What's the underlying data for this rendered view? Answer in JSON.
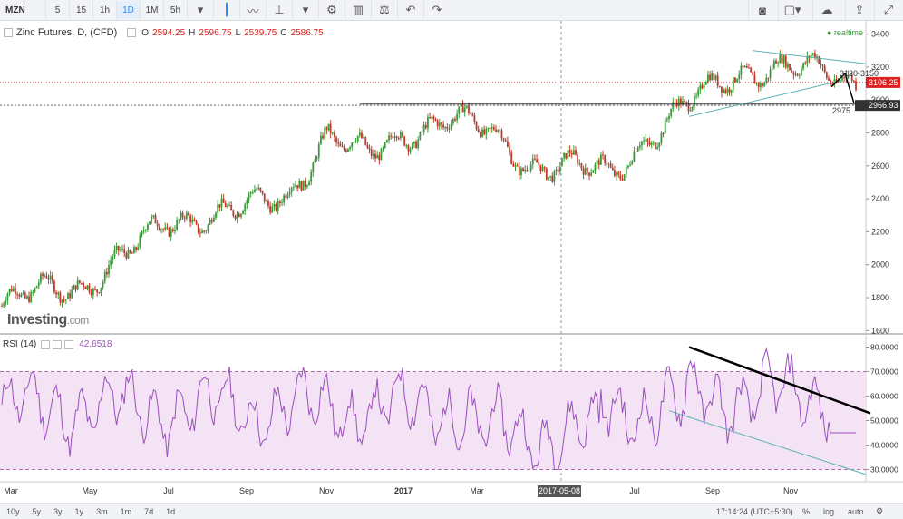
{
  "toolbar": {
    "symbol": "MZN",
    "intervals": [
      "5",
      "15",
      "1h",
      "1D",
      "1M",
      "5h"
    ],
    "active_interval": "1D"
  },
  "legend": {
    "title": "Zinc Futures, D, (CFD)",
    "open_label": "O",
    "open": "2594.25",
    "high_label": "H",
    "high": "2596.75",
    "low_label": "L",
    "low": "2539.75",
    "close_label": "C",
    "close": "2586.75"
  },
  "realtime_label": "realtime",
  "watermark": {
    "brand": "Investing",
    "suffix": ".com"
  },
  "rsi_legend": {
    "label": "RSI (14)",
    "value": "42.6518"
  },
  "bottom": {
    "ranges": [
      "10y",
      "5y",
      "3y",
      "1y",
      "3m",
      "1m",
      "7d",
      "1d"
    ],
    "time": "17:14:24 (UTC+5:30)",
    "percent": "%",
    "log": "log",
    "auto": "auto"
  },
  "colors": {
    "up": "#3a9a3a",
    "down": "#c0392b",
    "rsi": "#9b4fbf",
    "rsi_band": "#f3e3f4",
    "price_line": "#e02020"
  },
  "chart_data": {
    "type": "candlestick",
    "price_axis": {
      "ticks": [
        1600,
        1800,
        2000,
        2200,
        2400,
        2600,
        2800,
        3000,
        3200,
        3400
      ],
      "range": [
        1580,
        3480
      ]
    },
    "time_axis": {
      "labels": [
        "Mar",
        "May",
        "Jul",
        "Sep",
        "Nov",
        "2017",
        "Mar",
        "2017-05-08",
        "Jul",
        "Sep",
        "Nov"
      ]
    },
    "price_path": [
      {
        "month": "Mar 2016",
        "close": 1750
      },
      {
        "month": "Apr 2016",
        "close": 1850
      },
      {
        "month": "May 2016",
        "close": 1870
      },
      {
        "month": "Jun 2016",
        "close": 2050
      },
      {
        "month": "Jul 2016",
        "close": 2250
      },
      {
        "month": "Aug 2016",
        "close": 2300
      },
      {
        "month": "Sep 2016",
        "close": 2350
      },
      {
        "month": "Oct 2016",
        "close": 2400
      },
      {
        "month": "Nov 2016",
        "close": 2800
      },
      {
        "month": "Dec 2016",
        "close": 2650
      },
      {
        "month": "Jan 2017",
        "close": 2800
      },
      {
        "month": "Feb 2017",
        "close": 2900
      },
      {
        "month": "Mar 2017",
        "close": 2800
      },
      {
        "month": "Apr 2017",
        "close": 2600
      },
      {
        "month": "May 2017",
        "close": 2600
      },
      {
        "month": "Jun 2017",
        "close": 2550
      },
      {
        "month": "Jul 2017",
        "close": 2800
      },
      {
        "month": "Aug 2017",
        "close": 3000
      },
      {
        "month": "Sep 2017",
        "close": 3150
      },
      {
        "month": "Oct 2017",
        "close": 3200
      },
      {
        "month": "Nov 2017",
        "close": 3180
      },
      {
        "month": "Dec 2017",
        "close": 3106
      }
    ],
    "price_labels": {
      "current": "3106.25",
      "level": "2966.93",
      "target": "3120-3150",
      "support": "2975"
    },
    "rsi": {
      "ticks": [
        "30.0000",
        "40.0000",
        "50.0000",
        "60.0000",
        "70.0000",
        "80.0000"
      ],
      "range": [
        25,
        85
      ],
      "upper_band": 70,
      "lower_band": 30,
      "last": 42.65
    }
  }
}
